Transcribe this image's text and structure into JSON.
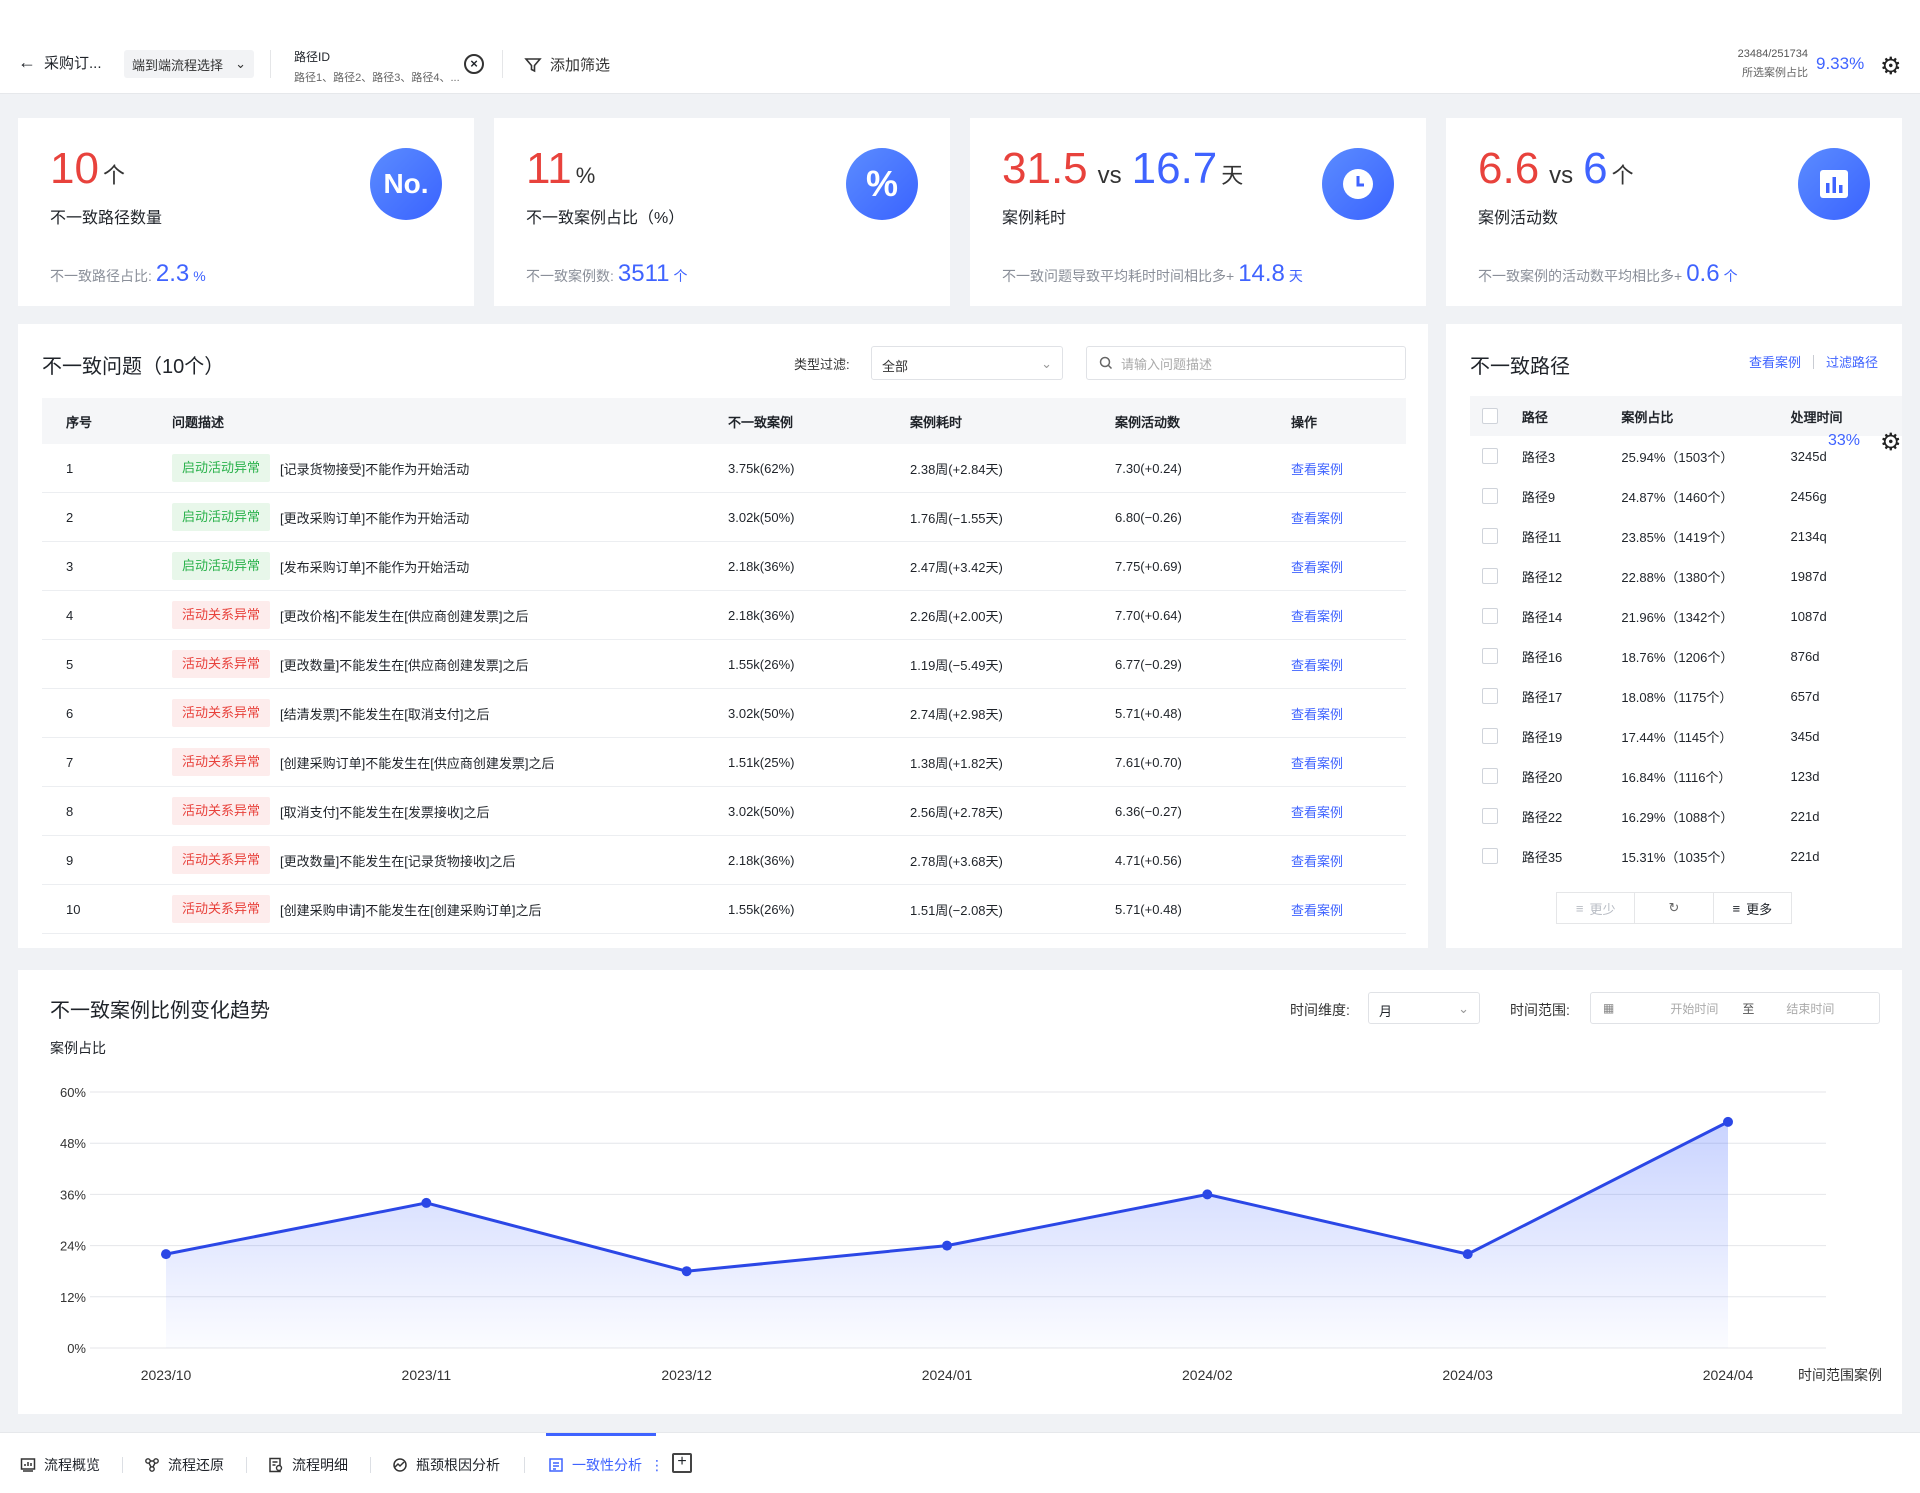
{
  "topbar": {
    "back_label": "采购订...",
    "flow_select": "端到端流程选择",
    "path_title": "路径ID",
    "path_values": "路径1、路径2、路径3、路径4、...",
    "filter_label": "添加筛选",
    "ratio_text": "23484/251734",
    "ratio_caption": "所选案例占比",
    "ratio_percent": "9.33%"
  },
  "kpis": [
    {
      "value": "10",
      "unit": "个",
      "label": "不一致路径数量",
      "sub_label": "不一致路径占比:",
      "sub_value": "2.3",
      "sub_unit": "%",
      "icon": "No."
    },
    {
      "value": "11",
      "unit": "%",
      "label": "不一致案例占比（%）",
      "sub_label": "不一致案例数:",
      "sub_value": "3511",
      "sub_unit": "个",
      "icon": "%"
    },
    {
      "value": "31.5",
      "vs": "vs",
      "value2": "16.7",
      "unit": "天",
      "label": "案例耗时",
      "sub_label": "不一致问题导致平均耗时时间相比多+",
      "sub_value": "14.8",
      "sub_unit": "天",
      "icon": "clock-icon"
    },
    {
      "value": "6.6",
      "vs": "vs",
      "value2": "6",
      "unit": "个",
      "label": "案例活动数",
      "sub_label": "不一致案例的活动数平均相比多+",
      "sub_value": "0.6",
      "sub_unit": "个",
      "icon": "bar-chart-icon"
    }
  ],
  "issues": {
    "title": "不一致问题（10个）",
    "filter_label": "类型过滤:",
    "filter_value": "全部",
    "search_placeholder": "请输入问题描述",
    "headers": [
      "序号",
      "问题描述",
      "不一致案例",
      "案例耗时",
      "案例活动数",
      "操作"
    ],
    "rows": [
      {
        "no": "1",
        "tag": "启动活动异常",
        "tag_color": "green",
        "desc": "[记录货物接受]不能作为开始活动",
        "cases": "3.75k(62%)",
        "time": "2.38周(+2.84天)",
        "acts": "7.30(+0.24)",
        "action": "查看案例"
      },
      {
        "no": "2",
        "tag": "启动活动异常",
        "tag_color": "green",
        "desc": "[更改采购订单]不能作为开始活动",
        "cases": "3.02k(50%)",
        "time": "1.76周(−1.55天)",
        "acts": "6.80(−0.26)",
        "action": "查看案例"
      },
      {
        "no": "3",
        "tag": "启动活动异常",
        "tag_color": "green",
        "desc": "[发布采购订单]不能作为开始活动",
        "cases": "2.18k(36%)",
        "time": "2.47周(+3.42天)",
        "acts": "7.75(+0.69)",
        "action": "查看案例"
      },
      {
        "no": "4",
        "tag": "活动关系异常",
        "tag_color": "red",
        "desc": "[更改价格]不能发生在[供应商创建发票]之后",
        "cases": "2.18k(36%)",
        "time": "2.26周(+2.00天)",
        "acts": "7.70(+0.64)",
        "action": "查看案例"
      },
      {
        "no": "5",
        "tag": "活动关系异常",
        "tag_color": "red",
        "desc": "[更改数量]不能发生在[供应商创建发票]之后",
        "cases": "1.55k(26%)",
        "time": "1.19周(−5.49天)",
        "acts": "6.77(−0.29)",
        "action": "查看案例"
      },
      {
        "no": "6",
        "tag": "活动关系异常",
        "tag_color": "red",
        "desc": "[结清发票]不能发生在[取消支付]之后",
        "cases": "3.02k(50%)",
        "time": "2.74周(+2.98天)",
        "acts": "5.71(+0.48)",
        "action": "查看案例"
      },
      {
        "no": "7",
        "tag": "活动关系异常",
        "tag_color": "red",
        "desc": "[创建采购订单]不能发生在[供应商创建发票]之后",
        "cases": "1.51k(25%)",
        "time": "1.38周(+1.82天)",
        "acts": "7.61(+0.70)",
        "action": "查看案例"
      },
      {
        "no": "8",
        "tag": "活动关系异常",
        "tag_color": "red",
        "desc": "[取消支付]不能发生在[发票接收]之后",
        "cases": "3.02k(50%)",
        "time": "2.56周(+2.78天)",
        "acts": "6.36(−0.27)",
        "action": "查看案例"
      },
      {
        "no": "9",
        "tag": "活动关系异常",
        "tag_color": "red",
        "desc": "[更改数量]不能发生在[记录货物接收]之后",
        "cases": "2.18k(36%)",
        "time": "2.78周(+3.68天)",
        "acts": "4.71(+0.56)",
        "action": "查看案例"
      },
      {
        "no": "10",
        "tag": "活动关系异常",
        "tag_color": "red",
        "desc": "[创建采购申请]不能发生在[创建采购订单]之后",
        "cases": "1.55k(26%)",
        "time": "1.51周(−2.08天)",
        "acts": "5.71(+0.48)",
        "action": "查看案例"
      }
    ]
  },
  "paths": {
    "title": "不一致路径",
    "link_view": "查看案例",
    "link_filter": "过滤路径",
    "headers": [
      "路径",
      "案例占比",
      "处理时间"
    ],
    "rows": [
      {
        "name": "路径3",
        "ratio": "25.94%（1503个）",
        "time": "3245d"
      },
      {
        "name": "路径9",
        "ratio": "24.87%（1460个）",
        "time": "2456g"
      },
      {
        "name": "路径11",
        "ratio": "23.85%（1419个）",
        "time": "2134q"
      },
      {
        "name": "路径12",
        "ratio": "22.88%（1380个）",
        "time": "1987d"
      },
      {
        "name": "路径14",
        "ratio": "21.96%（1342个）",
        "time": "1087d"
      },
      {
        "name": "路径16",
        "ratio": "18.76%（1206个）",
        "time": "876d"
      },
      {
        "name": "路径17",
        "ratio": "18.08%（1175个）",
        "time": "657d"
      },
      {
        "name": "路径19",
        "ratio": "17.44%（1145个）",
        "time": "345d"
      },
      {
        "name": "路径20",
        "ratio": "16.84%（1116个）",
        "time": "123d"
      },
      {
        "name": "路径22",
        "ratio": "16.29%（1088个）",
        "time": "221d"
      },
      {
        "name": "路径35",
        "ratio": "15.31%（1035个）",
        "time": "221d"
      }
    ],
    "btn_less": "更少",
    "btn_more": "更多",
    "float_percent": "33%"
  },
  "trend": {
    "title": "不一致案例比例变化趋势",
    "time_dim_label": "时间维度:",
    "time_dim_value": "月",
    "time_range_label": "时间范围:",
    "start_placeholder": "开始时间",
    "range_to": "至",
    "end_placeholder": "结束时间",
    "x_suffix": "时间范围案例"
  },
  "chart_data": {
    "type": "area",
    "ylabel": "案例占比",
    "categories": [
      "2023/10",
      "2023/11",
      "2023/12",
      "2024/01",
      "2024/02",
      "2024/03",
      "2024/04"
    ],
    "values": [
      22,
      34,
      18,
      24,
      36,
      22,
      53
    ],
    "yticks": [
      "0%",
      "12%",
      "24%",
      "36%",
      "48%",
      "60%"
    ],
    "ylim": [
      0,
      60
    ],
    "grid": true,
    "color": "#2b47e6"
  },
  "bottom_tabs": [
    {
      "label": "流程概览",
      "icon": "overview-icon"
    },
    {
      "label": "流程还原",
      "icon": "flow-icon"
    },
    {
      "label": "流程明细",
      "icon": "detail-icon"
    },
    {
      "label": "瓶颈根因分析",
      "icon": "analysis-icon"
    },
    {
      "label": "一致性分析",
      "icon": "consistency-icon"
    }
  ]
}
